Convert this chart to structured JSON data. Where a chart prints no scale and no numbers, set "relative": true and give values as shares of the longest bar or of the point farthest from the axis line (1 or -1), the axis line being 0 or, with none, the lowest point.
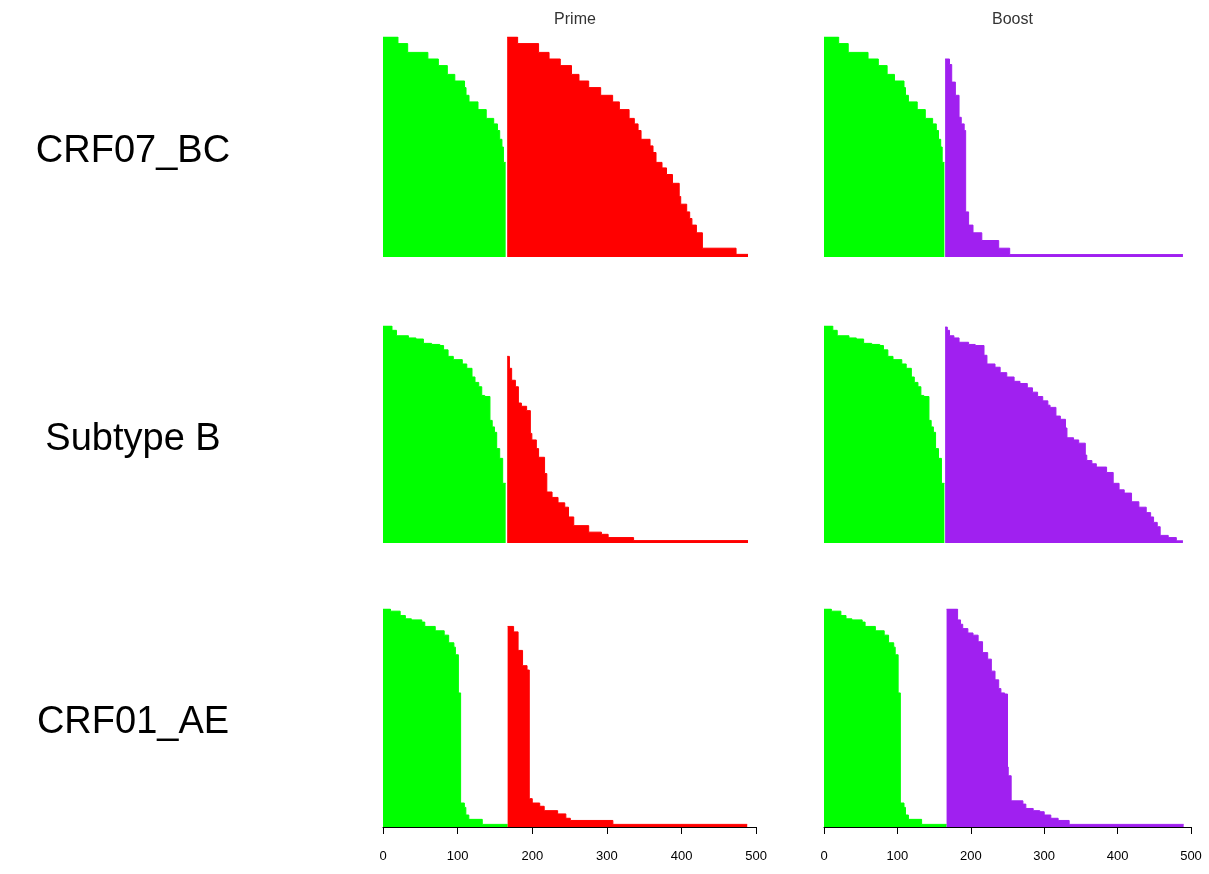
{
  "chart_data": [
    {
      "type": "area",
      "title": "Prime",
      "ylabel": "CRF07_BC",
      "relative": true,
      "xlim": [
        0,
        500
      ],
      "tick_labels": false,
      "series": [
        {
          "color": "#00ff00",
          "x": [
            0,
            20,
            20,
            33,
            33,
            60,
            60,
            74,
            74,
            86,
            86,
            96,
            96,
            109,
            109,
            111,
            111,
            115,
            115,
            127,
            127,
            138,
            138,
            148,
            148,
            153,
            153,
            156,
            156,
            159,
            159,
            161,
            161,
            164
          ],
          "values": [
            1,
            1,
            0.97,
            0.97,
            0.93,
            0.93,
            0.9,
            0.9,
            0.87,
            0.87,
            0.83,
            0.83,
            0.8,
            0.8,
            0.77,
            0.77,
            0.735,
            0.735,
            0.705,
            0.705,
            0.67,
            0.67,
            0.63,
            0.63,
            0.605,
            0.605,
            0.575,
            0.575,
            0.535,
            0.535,
            0.5,
            0.5,
            0.43,
            0.43
          ]
        },
        {
          "color": "#ff0000",
          "x": [
            166,
            180,
            180,
            208,
            208,
            222,
            222,
            237,
            237,
            252,
            252,
            262,
            262,
            275,
            275,
            291,
            291,
            307,
            307,
            316,
            316,
            329,
            329,
            336,
            336,
            341,
            341,
            345,
            345,
            357,
            357,
            361,
            361,
            365,
            365,
            373,
            373,
            379,
            379,
            387,
            387,
            396,
            396,
            398,
            398,
            406,
            406,
            410,
            410,
            413,
            413,
            419,
            419,
            427,
            427,
            472,
            472,
            488
          ],
          "values": [
            1,
            1,
            0.97,
            0.97,
            0.93,
            0.93,
            0.9,
            0.9,
            0.87,
            0.87,
            0.83,
            0.83,
            0.8,
            0.8,
            0.77,
            0.77,
            0.735,
            0.735,
            0.705,
            0.705,
            0.67,
            0.67,
            0.63,
            0.63,
            0.605,
            0.605,
            0.575,
            0.575,
            0.535,
            0.535,
            0.505,
            0.505,
            0.475,
            0.475,
            0.43,
            0.43,
            0.405,
            0.405,
            0.375,
            0.375,
            0.335,
            0.335,
            0.275,
            0.275,
            0.24,
            0.24,
            0.205,
            0.205,
            0.175,
            0.175,
            0.145,
            0.145,
            0.11,
            0.11,
            0.04,
            0.04,
            0.012,
            0.012
          ]
        }
      ]
    },
    {
      "type": "area",
      "title": "Boost",
      "relative": true,
      "xlim": [
        0,
        500
      ],
      "tick_labels": false,
      "series": [
        {
          "color": "#00ff00",
          "x": [
            0,
            20,
            20,
            33,
            33,
            60,
            60,
            74,
            74,
            86,
            86,
            96,
            96,
            109,
            109,
            111,
            111,
            115,
            115,
            127,
            127,
            138,
            138,
            148,
            148,
            153,
            153,
            156,
            156,
            159,
            159,
            161,
            161,
            164
          ],
          "values": [
            1,
            1,
            0.97,
            0.97,
            0.93,
            0.93,
            0.9,
            0.9,
            0.87,
            0.87,
            0.83,
            0.83,
            0.8,
            0.8,
            0.77,
            0.77,
            0.735,
            0.735,
            0.705,
            0.705,
            0.67,
            0.67,
            0.63,
            0.63,
            0.605,
            0.605,
            0.575,
            0.575,
            0.535,
            0.535,
            0.5,
            0.5,
            0.43,
            0.43
          ]
        },
        {
          "color": "#a020f0",
          "x": [
            165,
            171,
            171,
            174,
            174,
            179,
            179,
            184,
            184,
            187,
            187,
            191,
            191,
            193,
            193,
            197,
            197,
            203,
            203,
            215,
            215,
            238,
            238,
            253,
            253,
            489
          ],
          "values": [
            0.9,
            0.9,
            0.875,
            0.875,
            0.795,
            0.795,
            0.735,
            0.735,
            0.635,
            0.635,
            0.605,
            0.605,
            0.575,
            0.575,
            0.205,
            0.205,
            0.145,
            0.145,
            0.11,
            0.11,
            0.075,
            0.075,
            0.04,
            0.04,
            0.011,
            0.011
          ]
        }
      ]
    },
    {
      "type": "area",
      "ylabel": "Subtype B",
      "relative": true,
      "xlim": [
        0,
        500
      ],
      "tick_labels": false,
      "series": [
        {
          "color": "#00ff00",
          "x": [
            0,
            12,
            12,
            18,
            18,
            34,
            34,
            44,
            44,
            54,
            54,
            65,
            65,
            76,
            76,
            81,
            81,
            87,
            87,
            94,
            94,
            106,
            106,
            112,
            112,
            119,
            119,
            123,
            123,
            128,
            128,
            132,
            132,
            136,
            136,
            143,
            143,
            146,
            146,
            149,
            149,
            152,
            152,
            156,
            156,
            160,
            160,
            164
          ],
          "values": [
            1,
            1,
            0.98,
            0.98,
            0.955,
            0.955,
            0.945,
            0.945,
            0.94,
            0.94,
            0.92,
            0.92,
            0.915,
            0.915,
            0.91,
            0.91,
            0.89,
            0.89,
            0.86,
            0.86,
            0.845,
            0.845,
            0.825,
            0.825,
            0.805,
            0.805,
            0.765,
            0.765,
            0.74,
            0.74,
            0.72,
            0.72,
            0.68,
            0.68,
            0.675,
            0.675,
            0.565,
            0.565,
            0.535,
            0.535,
            0.51,
            0.51,
            0.435,
            0.435,
            0.39,
            0.39,
            0.275,
            0.275
          ]
        },
        {
          "color": "#ff0000",
          "x": [
            166,
            169,
            169,
            172,
            172,
            177,
            177,
            181,
            181,
            185,
            185,
            192,
            192,
            197,
            197,
            199,
            199,
            205,
            205,
            208,
            208,
            216,
            216,
            219,
            219,
            226,
            226,
            234,
            234,
            243,
            243,
            248,
            248,
            255,
            255,
            275,
            275,
            292,
            292,
            301,
            301,
            335,
            335,
            488
          ],
          "values": [
            0.86,
            0.86,
            0.805,
            0.805,
            0.75,
            0.75,
            0.72,
            0.72,
            0.645,
            0.645,
            0.63,
            0.63,
            0.61,
            0.61,
            0.505,
            0.505,
            0.475,
            0.475,
            0.435,
            0.435,
            0.395,
            0.395,
            0.32,
            0.32,
            0.235,
            0.235,
            0.21,
            0.21,
            0.185,
            0.185,
            0.165,
            0.165,
            0.12,
            0.12,
            0.08,
            0.08,
            0.05,
            0.05,
            0.04,
            0.04,
            0.025,
            0.025,
            0.011,
            0.011
          ]
        }
      ]
    },
    {
      "type": "area",
      "relative": true,
      "xlim": [
        0,
        500
      ],
      "tick_labels": false,
      "series": [
        {
          "color": "#00ff00",
          "x": [
            0,
            12,
            12,
            18,
            18,
            34,
            34,
            44,
            44,
            54,
            54,
            65,
            65,
            76,
            76,
            81,
            81,
            87,
            87,
            94,
            94,
            106,
            106,
            112,
            112,
            119,
            119,
            123,
            123,
            128,
            128,
            132,
            132,
            136,
            136,
            143,
            143,
            146,
            146,
            149,
            149,
            152,
            152,
            156,
            156,
            160,
            160,
            164
          ],
          "values": [
            1,
            1,
            0.98,
            0.98,
            0.955,
            0.955,
            0.945,
            0.945,
            0.94,
            0.94,
            0.92,
            0.92,
            0.915,
            0.915,
            0.91,
            0.91,
            0.89,
            0.89,
            0.86,
            0.86,
            0.845,
            0.845,
            0.825,
            0.825,
            0.805,
            0.805,
            0.765,
            0.765,
            0.74,
            0.74,
            0.72,
            0.72,
            0.68,
            0.68,
            0.675,
            0.675,
            0.565,
            0.565,
            0.535,
            0.535,
            0.51,
            0.51,
            0.435,
            0.435,
            0.39,
            0.39,
            0.275,
            0.275
          ]
        },
        {
          "color": "#a020f0",
          "x": [
            165,
            168,
            168,
            171,
            171,
            177,
            177,
            184,
            184,
            197,
            197,
            206,
            206,
            218,
            218,
            222,
            222,
            233,
            233,
            240,
            240,
            249,
            249,
            259,
            259,
            267,
            267,
            277,
            277,
            284,
            284,
            291,
            291,
            298,
            298,
            305,
            305,
            308,
            308,
            316,
            316,
            322,
            322,
            329,
            329,
            331,
            331,
            340,
            340,
            347,
            347,
            356,
            356,
            358,
            358,
            365,
            365,
            371,
            371,
            385,
            385,
            394,
            394,
            402,
            402,
            409,
            409,
            419,
            419,
            429,
            429,
            439,
            439,
            445,
            445,
            449,
            449,
            454,
            454,
            458,
            458,
            469,
            469,
            480,
            480,
            489
          ],
          "values": [
            0.995,
            0.995,
            0.98,
            0.98,
            0.955,
            0.955,
            0.945,
            0.945,
            0.925,
            0.925,
            0.915,
            0.915,
            0.91,
            0.91,
            0.865,
            0.865,
            0.825,
            0.825,
            0.81,
            0.81,
            0.785,
            0.785,
            0.765,
            0.765,
            0.745,
            0.745,
            0.735,
            0.735,
            0.715,
            0.715,
            0.695,
            0.695,
            0.675,
            0.675,
            0.655,
            0.655,
            0.635,
            0.635,
            0.625,
            0.625,
            0.585,
            0.585,
            0.57,
            0.57,
            0.53,
            0.53,
            0.485,
            0.485,
            0.475,
            0.475,
            0.46,
            0.46,
            0.405,
            0.405,
            0.38,
            0.38,
            0.365,
            0.365,
            0.35,
            0.35,
            0.325,
            0.325,
            0.275,
            0.275,
            0.245,
            0.245,
            0.23,
            0.23,
            0.19,
            0.19,
            0.165,
            0.165,
            0.14,
            0.14,
            0.12,
            0.12,
            0.095,
            0.095,
            0.075,
            0.075,
            0.035,
            0.035,
            0.025,
            0.025,
            0.01,
            0.01
          ]
        }
      ]
    },
    {
      "type": "area",
      "ylabel": "CRF01_AE",
      "relative": true,
      "xlim": [
        0,
        500
      ],
      "xticks": [
        0,
        100,
        200,
        300,
        400,
        500
      ],
      "tick_labels": "x",
      "series": [
        {
          "color": "#00ff00",
          "x": [
            0,
            10,
            10,
            23,
            23,
            30,
            30,
            38,
            38,
            52,
            52,
            56,
            56,
            70,
            70,
            82,
            82,
            88,
            88,
            95,
            95,
            97,
            97,
            101,
            101,
            104,
            104,
            109,
            109,
            111,
            111,
            115,
            115,
            133,
            133,
            167
          ],
          "values": [
            1,
            1,
            0.99,
            0.99,
            0.97,
            0.97,
            0.955,
            0.955,
            0.95,
            0.95,
            0.94,
            0.94,
            0.92,
            0.92,
            0.9,
            0.9,
            0.88,
            0.88,
            0.845,
            0.845,
            0.825,
            0.825,
            0.79,
            0.79,
            0.615,
            0.615,
            0.11,
            0.11,
            0.09,
            0.09,
            0.055,
            0.055,
            0.035,
            0.035,
            0.012,
            0.012
          ]
        },
        {
          "color": "#ff0000",
          "x": [
            167,
            175,
            175,
            181,
            181,
            187,
            187,
            193,
            193,
            196,
            196,
            200,
            200,
            210,
            210,
            216,
            216,
            234,
            234,
            245,
            245,
            251,
            251,
            308,
            308,
            488
          ],
          "values": [
            0.92,
            0.92,
            0.895,
            0.895,
            0.81,
            0.81,
            0.74,
            0.74,
            0.72,
            0.72,
            0.13,
            0.13,
            0.11,
            0.11,
            0.095,
            0.095,
            0.075,
            0.075,
            0.06,
            0.06,
            0.04,
            0.04,
            0.03,
            0.03,
            0.012,
            0.012
          ]
        }
      ]
    },
    {
      "type": "area",
      "relative": true,
      "xlim": [
        0,
        500
      ],
      "xticks": [
        0,
        100,
        200,
        300,
        400,
        500
      ],
      "tick_labels": "x",
      "series": [
        {
          "color": "#00ff00",
          "x": [
            0,
            10,
            10,
            23,
            23,
            30,
            30,
            38,
            38,
            52,
            52,
            56,
            56,
            70,
            70,
            82,
            82,
            88,
            88,
            95,
            95,
            97,
            97,
            101,
            101,
            104,
            104,
            109,
            109,
            111,
            111,
            115,
            115,
            133,
            133,
            167
          ],
          "values": [
            1,
            1,
            0.99,
            0.99,
            0.97,
            0.97,
            0.955,
            0.955,
            0.95,
            0.95,
            0.94,
            0.94,
            0.92,
            0.92,
            0.9,
            0.9,
            0.88,
            0.88,
            0.845,
            0.845,
            0.825,
            0.825,
            0.79,
            0.79,
            0.615,
            0.615,
            0.11,
            0.11,
            0.09,
            0.09,
            0.055,
            0.055,
            0.035,
            0.035,
            0.012,
            0.012
          ]
        },
        {
          "color": "#a020f0",
          "x": [
            167,
            182,
            182,
            186,
            186,
            189,
            189,
            196,
            196,
            203,
            203,
            210,
            210,
            216,
            216,
            223,
            223,
            228,
            228,
            233,
            233,
            238,
            238,
            241,
            241,
            246,
            246,
            250,
            250,
            251,
            251,
            255,
            255,
            271,
            271,
            275,
            275,
            285,
            285,
            294,
            294,
            300,
            300,
            309,
            309,
            319,
            319,
            334,
            334,
            490
          ],
          "values": [
            1,
            1,
            0.95,
            0.95,
            0.93,
            0.93,
            0.91,
            0.91,
            0.89,
            0.89,
            0.88,
            0.88,
            0.85,
            0.85,
            0.8,
            0.8,
            0.77,
            0.77,
            0.715,
            0.715,
            0.675,
            0.675,
            0.635,
            0.635,
            0.615,
            0.615,
            0.61,
            0.61,
            0.275,
            0.275,
            0.235,
            0.235,
            0.12,
            0.12,
            0.105,
            0.105,
            0.085,
            0.085,
            0.075,
            0.075,
            0.07,
            0.07,
            0.055,
            0.055,
            0.04,
            0.04,
            0.03,
            0.03,
            0.012,
            0.012
          ]
        }
      ]
    }
  ]
}
